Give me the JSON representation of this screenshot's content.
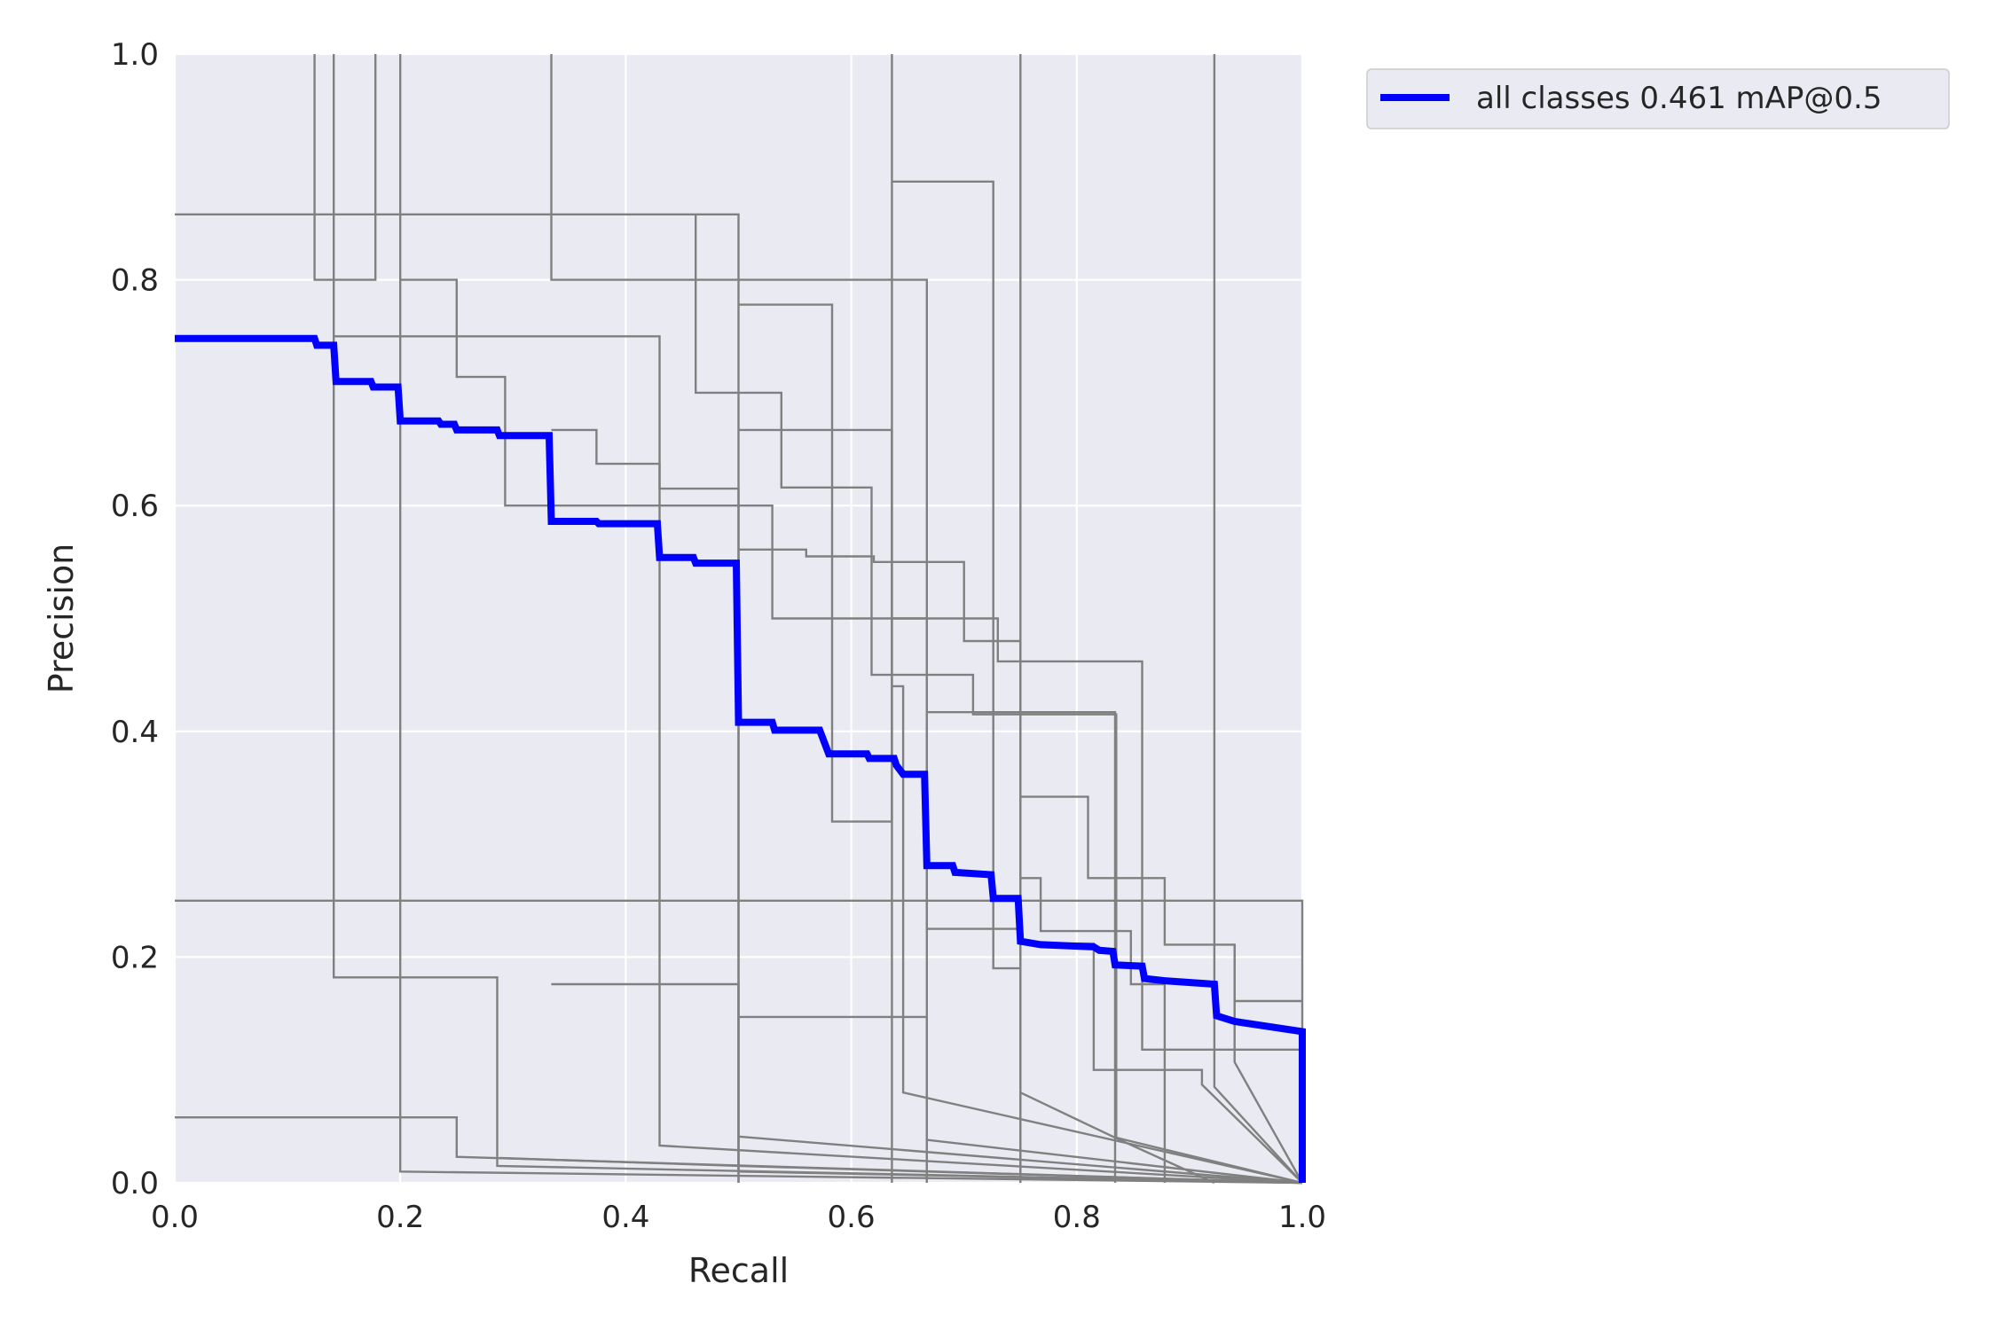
{
  "chart_data": {
    "type": "line",
    "title": "",
    "xlabel": "Recall",
    "ylabel": "Precision",
    "xlim": [
      0,
      1
    ],
    "ylim": [
      0,
      1
    ],
    "grid": true,
    "legend_position": "outside upper-right",
    "x_ticks": [
      "0.0",
      "0.2",
      "0.4",
      "0.6",
      "0.8",
      "1.0"
    ],
    "y_ticks": [
      "0.0",
      "0.2",
      "0.4",
      "0.6",
      "0.8",
      "1.0"
    ],
    "colors": {
      "background": "#eaeaf2",
      "grid": "#ffffff",
      "class_curves": "#808080",
      "all_classes": "#0000ff"
    },
    "series": [
      {
        "name": "all classes 0.461 mAP@0.5",
        "color": "#0000ff",
        "emphasis": true,
        "points": [
          [
            0,
            0.748
          ],
          [
            0.124,
            0.748
          ],
          [
            0.126,
            0.742
          ],
          [
            0.141,
            0.742
          ],
          [
            0.143,
            0.71
          ],
          [
            0.174,
            0.71
          ],
          [
            0.176,
            0.705
          ],
          [
            0.198,
            0.705
          ],
          [
            0.2,
            0.675
          ],
          [
            0.234,
            0.675
          ],
          [
            0.236,
            0.672
          ],
          [
            0.248,
            0.672
          ],
          [
            0.25,
            0.667
          ],
          [
            0.286,
            0.667
          ],
          [
            0.288,
            0.662
          ],
          [
            0.332,
            0.662
          ],
          [
            0.334,
            0.586
          ],
          [
            0.374,
            0.586
          ],
          [
            0.376,
            0.584
          ],
          [
            0.428,
            0.584
          ],
          [
            0.43,
            0.554
          ],
          [
            0.46,
            0.554
          ],
          [
            0.462,
            0.549
          ],
          [
            0.498,
            0.549
          ],
          [
            0.5,
            0.408
          ],
          [
            0.53,
            0.408
          ],
          [
            0.532,
            0.401
          ],
          [
            0.572,
            0.401
          ],
          [
            0.58,
            0.38
          ],
          [
            0.614,
            0.38
          ],
          [
            0.616,
            0.376
          ],
          [
            0.638,
            0.376
          ],
          [
            0.64,
            0.37
          ],
          [
            0.646,
            0.362
          ],
          [
            0.665,
            0.362
          ],
          [
            0.667,
            0.281
          ],
          [
            0.69,
            0.281
          ],
          [
            0.692,
            0.275
          ],
          [
            0.724,
            0.273
          ],
          [
            0.726,
            0.252
          ],
          [
            0.748,
            0.252
          ],
          [
            0.75,
            0.214
          ],
          [
            0.768,
            0.211
          ],
          [
            0.815,
            0.209
          ],
          [
            0.82,
            0.206
          ],
          [
            0.832,
            0.205
          ],
          [
            0.834,
            0.193
          ],
          [
            0.858,
            0.192
          ],
          [
            0.86,
            0.181
          ],
          [
            0.878,
            0.179
          ],
          [
            0.922,
            0.176
          ],
          [
            0.924,
            0.148
          ],
          [
            0.94,
            0.143
          ],
          [
            1.0,
            0.134
          ],
          [
            1.0,
            0.0
          ]
        ]
      },
      {
        "values_from": "class-0",
        "color": "#808080",
        "points": [
          [
            0,
            0.858
          ],
          [
            0.5,
            0.858
          ],
          [
            0.5,
            0.0
          ]
        ]
      },
      {
        "values_from": "class-1",
        "color": "#808080",
        "points": [
          [
            0,
            0.25
          ],
          [
            1.0,
            0.25
          ],
          [
            1.0,
            0.0
          ]
        ]
      },
      {
        "values_from": "class-2",
        "color": "#808080",
        "points": [
          [
            0,
            0.058
          ],
          [
            0.25,
            0.058
          ],
          [
            0.25,
            0.023
          ],
          [
            1.0,
            0.0
          ]
        ]
      },
      {
        "values_from": "class-3",
        "color": "#808080",
        "points": [
          [
            0.124,
            1.0
          ],
          [
            0.124,
            0.8
          ],
          [
            0.178,
            0.8
          ],
          [
            0.178,
            1.0
          ]
        ]
      },
      {
        "values_from": "class-4",
        "color": "#808080",
        "points": [
          [
            0.141,
            1.0
          ],
          [
            0.141,
            0.182
          ],
          [
            0.286,
            0.182
          ],
          [
            0.286,
            0.015
          ],
          [
            1.0,
            0.0
          ]
        ]
      },
      {
        "values_from": "class-5",
        "color": "#808080",
        "points": [
          [
            0.2,
            1.0
          ],
          [
            0.2,
            0.8
          ],
          [
            0.25,
            0.8
          ],
          [
            0.25,
            0.714
          ],
          [
            0.293,
            0.714
          ],
          [
            0.293,
            0.6
          ],
          [
            0.5,
            0.6
          ],
          [
            0.5,
            0.01
          ],
          [
            1.0,
            0.0
          ]
        ]
      },
      {
        "values_from": "class-6",
        "color": "#808080",
        "points": [
          [
            0.2,
            0.8
          ],
          [
            0.2,
            0.01
          ],
          [
            1.0,
            0.0
          ]
        ]
      },
      {
        "values_from": "class-7",
        "color": "#808080",
        "points": [
          [
            0.141,
            0.75
          ],
          [
            0.43,
            0.75
          ],
          [
            0.43,
            0.033
          ],
          [
            1.0,
            0.0
          ]
        ]
      },
      {
        "values_from": "class-8",
        "color": "#808080",
        "points": [
          [
            0.334,
            1.0
          ],
          [
            0.334,
            0.8
          ],
          [
            0.667,
            0.8
          ],
          [
            0.667,
            0.0
          ]
        ]
      },
      {
        "values_from": "class-9",
        "color": "#808080",
        "points": [
          [
            0.334,
            0.667
          ],
          [
            0.374,
            0.667
          ],
          [
            0.374,
            0.637
          ],
          [
            0.43,
            0.637
          ],
          [
            0.43,
            0.615
          ],
          [
            0.5,
            0.615
          ],
          [
            0.5,
            0.6
          ],
          [
            0.53,
            0.6
          ],
          [
            0.53,
            0.5
          ],
          [
            0.667,
            0.5
          ],
          [
            0.667,
            0.225
          ],
          [
            0.75,
            0.225
          ],
          [
            0.75,
            0.0
          ]
        ]
      },
      {
        "values_from": "class-10",
        "color": "#808080",
        "points": [
          [
            0.334,
            0.176
          ],
          [
            0.5,
            0.176
          ],
          [
            0.5,
            0.0
          ]
        ]
      },
      {
        "values_from": "class-11",
        "color": "#808080",
        "points": [
          [
            0.462,
            0.858
          ],
          [
            0.462,
            0.7
          ],
          [
            0.538,
            0.7
          ],
          [
            0.538,
            0.616
          ],
          [
            0.618,
            0.616
          ],
          [
            0.618,
            0.45
          ],
          [
            0.708,
            0.45
          ],
          [
            0.708,
            0.415
          ],
          [
            0.835,
            0.415
          ],
          [
            0.835,
            0.04
          ],
          [
            1.0,
            0.0
          ]
        ]
      },
      {
        "values_from": "class-12",
        "color": "#808080",
        "points": [
          [
            0.5,
            0.778
          ],
          [
            0.583,
            0.778
          ],
          [
            0.583,
            0.32
          ],
          [
            0.636,
            0.32
          ],
          [
            0.636,
            0.667
          ],
          [
            0.5,
            0.667
          ]
        ]
      },
      {
        "values_from": "class-13",
        "color": "#808080",
        "points": [
          [
            0.5,
            0.561
          ],
          [
            0.56,
            0.561
          ],
          [
            0.56,
            0.555
          ],
          [
            0.62,
            0.555
          ],
          [
            0.62,
            0.55
          ],
          [
            0.7,
            0.55
          ],
          [
            0.7,
            0.48
          ],
          [
            0.75,
            0.48
          ],
          [
            0.75,
            0.0
          ]
        ]
      },
      {
        "values_from": "class-14",
        "color": "#808080",
        "points": [
          [
            0.5,
            0.147
          ],
          [
            0.667,
            0.147
          ],
          [
            0.667,
            0.0
          ]
        ]
      },
      {
        "values_from": "class-15",
        "color": "#808080",
        "points": [
          [
            0.5,
            0.041
          ],
          [
            1.0,
            0.0
          ]
        ]
      },
      {
        "values_from": "class-16",
        "color": "#808080",
        "points": [
          [
            0.636,
            1.0
          ],
          [
            0.636,
            0.0
          ]
        ]
      },
      {
        "values_from": "class-17",
        "color": "#808080",
        "points": [
          [
            0.636,
            0.5
          ],
          [
            0.73,
            0.5
          ],
          [
            0.73,
            0.462
          ],
          [
            0.858,
            0.462
          ],
          [
            0.858,
            0.118
          ],
          [
            1.0,
            0.118
          ]
        ]
      },
      {
        "values_from": "class-18",
        "color": "#808080",
        "points": [
          [
            0.636,
            0.44
          ],
          [
            0.646,
            0.44
          ],
          [
            0.646,
            0.08
          ],
          [
            1.0,
            0.0
          ]
        ]
      },
      {
        "values_from": "class-19",
        "color": "#808080",
        "points": [
          [
            0.667,
            0.417
          ],
          [
            0.834,
            0.417
          ],
          [
            0.834,
            0.0
          ]
        ]
      },
      {
        "values_from": "class-20",
        "color": "#808080",
        "points": [
          [
            0.667,
            0.038
          ],
          [
            1.0,
            0.0
          ]
        ]
      },
      {
        "values_from": "class-21",
        "color": "#808080",
        "points": [
          [
            0.636,
            0.887
          ],
          [
            0.726,
            0.887
          ],
          [
            0.726,
            0.19
          ],
          [
            0.75,
            0.19
          ],
          [
            0.75,
            0.342
          ],
          [
            0.81,
            0.342
          ],
          [
            0.81,
            0.27
          ],
          [
            0.878,
            0.27
          ],
          [
            0.878,
            0.211
          ],
          [
            0.94,
            0.211
          ],
          [
            0.94,
            0.161
          ],
          [
            1.0,
            0.161
          ]
        ]
      },
      {
        "values_from": "class-22",
        "color": "#808080",
        "points": [
          [
            0.75,
            1.0
          ],
          [
            0.75,
            0.27
          ],
          [
            0.768,
            0.27
          ],
          [
            0.768,
            0.223
          ],
          [
            0.848,
            0.223
          ],
          [
            0.848,
            0.176
          ],
          [
            0.878,
            0.176
          ],
          [
            0.878,
            0.0
          ]
        ]
      },
      {
        "values_from": "class-23",
        "color": "#808080",
        "points": [
          [
            0.75,
            0.212
          ],
          [
            0.815,
            0.212
          ],
          [
            0.815,
            0.1
          ],
          [
            0.911,
            0.1
          ],
          [
            0.911,
            0.087
          ],
          [
            1.0,
            0.0
          ]
        ]
      },
      {
        "values_from": "class-24",
        "color": "#808080",
        "points": [
          [
            0.922,
            1.0
          ],
          [
            0.922,
            0.085
          ],
          [
            1.0,
            0.0
          ]
        ]
      },
      {
        "values_from": "class-25",
        "color": "#808080",
        "points": [
          [
            0.94,
            0.211
          ],
          [
            0.94,
            0.107
          ],
          [
            1.0,
            0.0
          ]
        ]
      },
      {
        "values_from": "class-26",
        "color": "#808080",
        "points": [
          [
            0.75,
            0.08
          ],
          [
            0.834,
            0.04
          ],
          [
            0.922,
            0.0
          ]
        ]
      },
      {
        "values_from": "class-27",
        "color": "#808080",
        "points": [
          [
            0.288,
            0.022
          ],
          [
            0.5,
            0.015
          ],
          [
            1.0,
            0.0
          ]
        ]
      }
    ]
  }
}
